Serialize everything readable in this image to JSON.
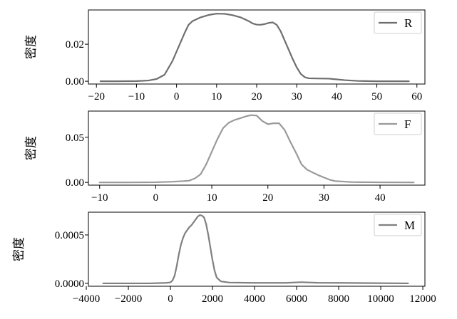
{
  "chart_data": [
    {
      "type": "line",
      "ylabel": "密度",
      "legend": "R",
      "color": "#6e6e6e",
      "legend_position": "top-right",
      "grid": false,
      "xlim": [
        -22,
        62
      ],
      "ylim": [
        -0.0015,
        0.0385
      ],
      "xticks": [
        -20,
        -10,
        0,
        10,
        20,
        30,
        40,
        50,
        60
      ],
      "xtick_labels": [
        "−20",
        "−10",
        "0",
        "10",
        "20",
        "30",
        "40",
        "50",
        "60"
      ],
      "yticks": [
        0.0,
        0.02
      ],
      "ytick_labels": [
        "0.00",
        "0.02"
      ],
      "series": [
        {
          "name": "R",
          "x": [
            -19,
            -15,
            -10,
            -7,
            -5,
            -3,
            -1,
            0,
            1,
            2,
            3,
            4,
            6,
            8,
            10,
            12,
            14,
            16,
            18,
            19,
            20,
            21,
            22,
            23,
            24,
            25,
            26,
            27,
            28,
            29,
            30,
            31,
            32,
            33,
            35,
            38,
            40,
            42,
            45,
            50,
            55,
            58
          ],
          "y": [
            0.0,
            0.0,
            0.0001,
            0.0004,
            0.0012,
            0.0035,
            0.011,
            0.016,
            0.021,
            0.026,
            0.0305,
            0.0325,
            0.0345,
            0.0358,
            0.0365,
            0.0364,
            0.0357,
            0.0345,
            0.0325,
            0.0312,
            0.0306,
            0.0305,
            0.0309,
            0.0315,
            0.0318,
            0.0305,
            0.027,
            0.022,
            0.017,
            0.012,
            0.0075,
            0.004,
            0.0022,
            0.0016,
            0.0015,
            0.0014,
            0.001,
            0.0006,
            0.0002,
            0.0,
            0.0,
            0.0
          ]
        }
      ]
    },
    {
      "type": "line",
      "ylabel": "密度",
      "legend": "F",
      "color": "#9a9a9a",
      "legend_position": "top-right",
      "grid": false,
      "xlim": [
        -12,
        48
      ],
      "ylim": [
        -0.003,
        0.079
      ],
      "xticks": [
        -10,
        0,
        10,
        20,
        30,
        40
      ],
      "xtick_labels": [
        "−10",
        "0",
        "10",
        "20",
        "30",
        "40"
      ],
      "yticks": [
        0.0,
        0.05
      ],
      "ytick_labels": [
        "0.00",
        "0.05"
      ],
      "series": [
        {
          "name": "F",
          "x": [
            -10,
            -5,
            0,
            3,
            5,
            6,
            7,
            8,
            9,
            10,
            11,
            12,
            13,
            14,
            15,
            16,
            17,
            18,
            19,
            20,
            21,
            22,
            23,
            24,
            25,
            26,
            27,
            28,
            29,
            30,
            31,
            32,
            35,
            40,
            46
          ],
          "y": [
            0.0,
            0.0,
            0.0002,
            0.0008,
            0.0015,
            0.002,
            0.0045,
            0.009,
            0.02,
            0.034,
            0.048,
            0.06,
            0.066,
            0.069,
            0.071,
            0.073,
            0.0745,
            0.074,
            0.068,
            0.0645,
            0.0655,
            0.0655,
            0.058,
            0.045,
            0.033,
            0.02,
            0.014,
            0.011,
            0.008,
            0.0055,
            0.003,
            0.0015,
            0.0004,
            0.0001,
            0.0
          ]
        }
      ]
    },
    {
      "type": "line",
      "ylabel": "密度",
      "legend": "M",
      "color": "#808080",
      "legend_position": "top-right",
      "grid": false,
      "xlim": [
        -3900,
        12100
      ],
      "ylim": [
        -3e-05,
        0.000735
      ],
      "xticks": [
        -4000,
        -2000,
        0,
        2000,
        4000,
        6000,
        8000,
        10000,
        12000
      ],
      "xtick_labels": [
        "−4000",
        "−2000",
        "0",
        "2000",
        "4000",
        "6000",
        "8000",
        "10000",
        "12000"
      ],
      "yticks": [
        0.0,
        0.0005
      ],
      "ytick_labels": [
        "0.0000",
        "0.0005"
      ],
      "series": [
        {
          "name": "M",
          "x": [
            -3200,
            -1000,
            -200,
            0,
            100,
            200,
            300,
            400,
            500,
            600,
            700,
            800,
            900,
            1000,
            1100,
            1200,
            1300,
            1400,
            1500,
            1600,
            1700,
            1800,
            1900,
            2000,
            2100,
            2200,
            2400,
            2800,
            4000,
            5500,
            6200,
            7000,
            8000,
            11300
          ],
          "y": [
            0.0,
            0.0,
            5e-06,
            1e-05,
            3e-05,
            8e-05,
            0.00018,
            0.0003,
            0.0004,
            0.00047,
            0.00052,
            0.00055,
            0.00058,
            0.0006,
            0.00063,
            0.00066,
            0.00069,
            0.000705,
            0.0007,
            0.00068,
            0.00061,
            0.0005,
            0.00037,
            0.00024,
            0.00013,
            6e-05,
            2e-05,
            8e-06,
            5e-06,
            5e-06,
            1.2e-05,
            6e-06,
            5e-06,
            0.0
          ]
        }
      ]
    }
  ]
}
